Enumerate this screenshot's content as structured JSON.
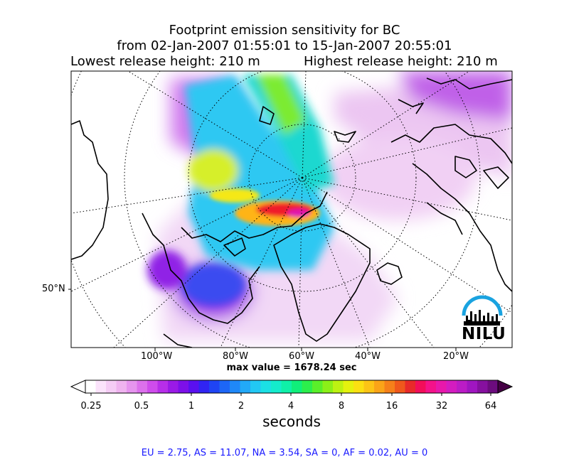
{
  "title": {
    "line1": "Footprint emission sensitivity for BC",
    "line2": "from 02-Jan-2007 01:55:01 to 15-Jan-2007 20:55:01",
    "lowest": "Lowest release height: 210 m",
    "highest": "Highest release height: 210 m"
  },
  "axes": {
    "x_ticks": [
      "100°W",
      "80°W",
      "60°W",
      "40°W",
      "20°W"
    ],
    "y_ticks": [
      "50°N"
    ]
  },
  "max_value_label": "max value = 1678.24 sec",
  "colorbar": {
    "ticks": [
      "0.25",
      "0.5",
      "1",
      "2",
      "4",
      "8",
      "16",
      "32",
      "64"
    ],
    "label": "seconds",
    "colors": [
      "#ffffff",
      "#fbe3fb",
      "#f5ccf5",
      "#efb3ef",
      "#e694ee",
      "#dc70ec",
      "#cf4cec",
      "#b72ee9",
      "#9a1ae6",
      "#7d10e8",
      "#5a10ef",
      "#3024f2",
      "#1f44f4",
      "#1d66f6",
      "#1f88f8",
      "#22a9f8",
      "#22c8f4",
      "#1be0e4",
      "#14eccc",
      "#0ff0a8",
      "#10ef7a",
      "#2cee4c",
      "#5aef2a",
      "#8cf018",
      "#bdf212",
      "#e5f20e",
      "#fbe012",
      "#fcc416",
      "#faa418",
      "#f5801a",
      "#ef581c",
      "#e82a2a",
      "#f20e5a",
      "#f4128a",
      "#e818ab",
      "#d41cc0",
      "#bb1cc6",
      "#a016c0",
      "#86109f",
      "#6c0c7e"
    ]
  },
  "logo": {
    "text": "NILU"
  },
  "stats": "EU = 2.75,  AS = 11.07,  NA = 3.54,  SA = 0,  AF = 0.02,  AU = 0",
  "chart_data": {
    "type": "heatmap",
    "title": "Footprint emission sensitivity for BC",
    "subtitle": "from 02-Jan-2007 01:55:01 to 15-Jan-2007 20:55:01",
    "release_heights": {
      "lowest_m": 210,
      "highest_m": 210
    },
    "max_value_sec": 1678.24,
    "x_tick_labels": [
      "100°W",
      "80°W",
      "60°W",
      "40°W",
      "20°W"
    ],
    "y_tick_labels": [
      "50°N"
    ],
    "colorbar_ticks": [
      0.25,
      0.5,
      1,
      2,
      4,
      8,
      16,
      32,
      64
    ],
    "colorbar_scale": "log",
    "colorbar_label": "seconds",
    "regional_values": {
      "EU": 2.75,
      "AS": 11.07,
      "NA": 3.54,
      "SA": 0,
      "AF": 0.02,
      "AU": 0
    }
  }
}
